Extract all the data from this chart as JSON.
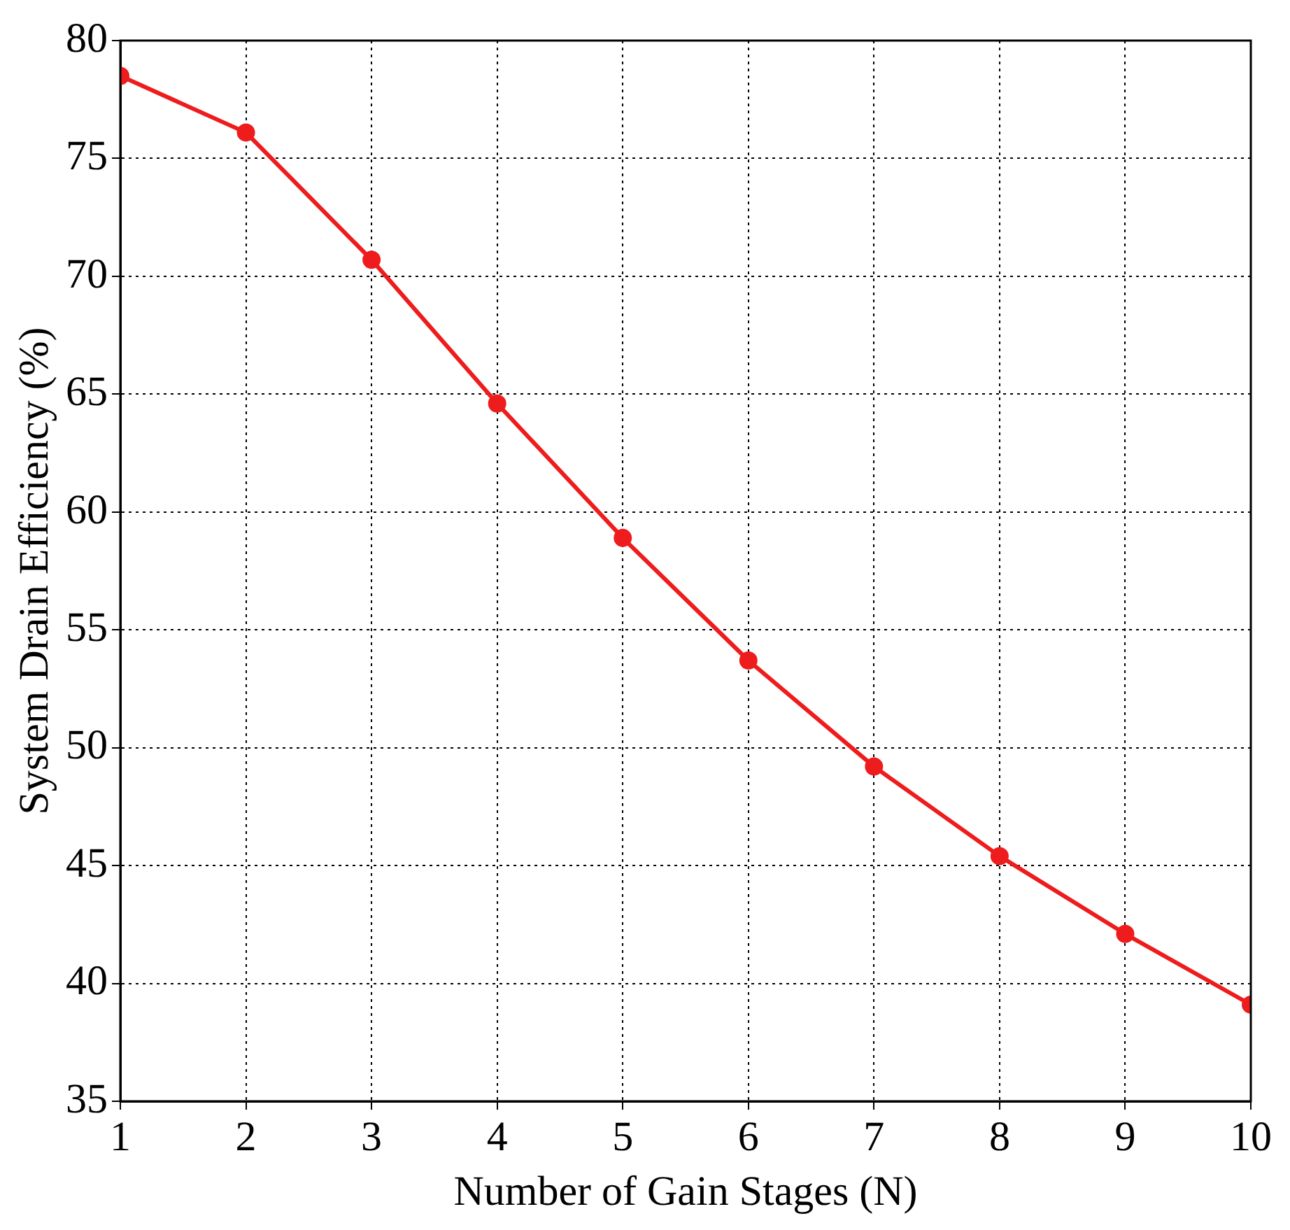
{
  "chart_data": {
    "type": "line",
    "xlabel": "Number of Gain Stages (N)",
    "ylabel": "System Drain Efficiency (%)",
    "x": [
      1,
      2,
      3,
      4,
      5,
      6,
      7,
      8,
      9,
      10
    ],
    "series": [
      {
        "color": "#ee1c1c",
        "values": [
          78.5,
          76.1,
          70.7,
          64.6,
          58.9,
          53.7,
          49.2,
          45.4,
          42.1,
          39.1
        ]
      }
    ],
    "xlim": [
      1,
      10
    ],
    "xticks": [
      1,
      2,
      3,
      4,
      5,
      6,
      7,
      8,
      9,
      10
    ],
    "ylim": [
      35,
      80
    ],
    "yticks": [
      35,
      40,
      45,
      50,
      55,
      60,
      65,
      70,
      75,
      80
    ],
    "grid": true,
    "marker": "circle",
    "line_style": "solid",
    "legend": false
  }
}
